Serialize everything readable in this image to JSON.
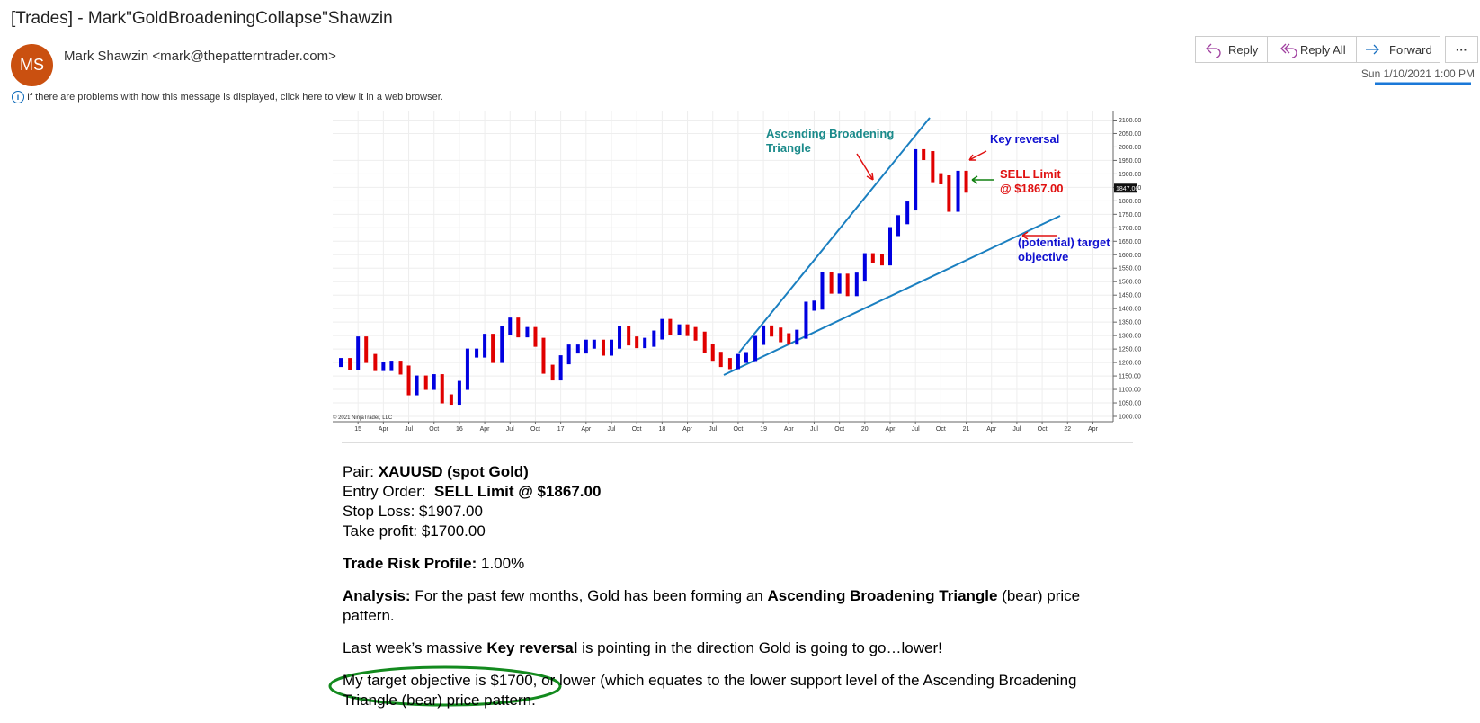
{
  "email": {
    "subject": "[Trades] - Mark\"GoldBroadeningCollapse\"Shawzin",
    "initials": "MS",
    "sender": "Mark Shawzin <mark@thepatterntrader.com>",
    "info": "If there are problems with how this message is displayed, click here to view it in a web browser.",
    "buttons": [
      "Reply",
      "Reply All",
      "Forward"
    ],
    "date": "Sun 1/10/2021 1:00 PM",
    "body": [
      [
        [
          {
            "text": "Pair: "
          },
          {
            "text": "XAUUSD (spot Gold)",
            "bold": true
          }
        ],
        [
          {
            "text": "Entry Order:  "
          },
          {
            "text": "SELL Limit @ $1867.00",
            "bold": true
          }
        ],
        [
          {
            "text": "Stop Loss: $1907.00"
          }
        ],
        [
          {
            "text": "Take profit: $1700.00"
          }
        ]
      ],
      [
        [
          {
            "text": "Trade Risk Profile:",
            "bold": true
          },
          {
            "text": " 1.00%"
          }
        ]
      ],
      [
        [
          {
            "text": "Analysis:",
            "bold": true
          },
          {
            "text": " For the past few months, Gold has been forming an "
          },
          {
            "text": "Ascending Broadening Triangle",
            "bold": true
          },
          {
            "text": " (bear) price pattern."
          }
        ]
      ],
      [
        [
          {
            "text": "Last week’s massive "
          },
          {
            "text": "Key reversal",
            "bold": true
          },
          {
            "text": " is pointing in the direction Gold is going to go…lower!"
          }
        ]
      ],
      [
        [
          {
            "text": "My target objective is $1700, or lower (which equates to the lower support level of the Ascending Broadening Triangle (bear) price pattern."
          }
        ]
      ]
    ]
  },
  "chart_data": {
    "type": "ohlc",
    "up_color": "#0000e0",
    "down_color": "#e00000",
    "annotations": [
      {
        "lines": [
          "Ascending Broadening",
          "Triangle"
        ],
        "color": "#1a8a8a"
      },
      {
        "lines": [
          "Key reversal"
        ],
        "color": "#1010d0"
      },
      {
        "lines": [
          "SELL Limit",
          "@ $1867.00"
        ],
        "color": "#e01010"
      },
      {
        "lines": [
          "(potential) target",
          "objective"
        ],
        "color": "#1010d0"
      }
    ],
    "copyright": "© 2021 NinjaTrader, LLC",
    "last_price": 1847.06,
    "x": [
      2014.83,
      2014.92,
      2015.0,
      2015.08,
      2015.17,
      2015.25,
      2015.33,
      2015.42,
      2015.5,
      2015.58,
      2015.67,
      2015.75,
      2015.83,
      2015.92,
      2016.0,
      2016.08,
      2016.17,
      2016.25,
      2016.33,
      2016.42,
      2016.5,
      2016.58,
      2016.67,
      2016.75,
      2016.83,
      2016.92,
      2017.0,
      2017.08,
      2017.17,
      2017.25,
      2017.33,
      2017.42,
      2017.5,
      2017.58,
      2017.67,
      2017.75,
      2017.83,
      2017.92,
      2018.0,
      2018.08,
      2018.17,
      2018.25,
      2018.33,
      2018.42,
      2018.5,
      2018.58,
      2018.67,
      2018.75,
      2018.83,
      2018.92,
      2019.0,
      2019.08,
      2019.17,
      2019.25,
      2019.33,
      2019.42,
      2019.5,
      2019.58,
      2019.67,
      2019.75,
      2019.83,
      2019.92,
      2020.0,
      2020.08,
      2020.17,
      2020.25,
      2020.33,
      2020.42,
      2020.5,
      2020.58,
      2020.67,
      2020.75,
      2020.83,
      2020.92,
      2021.0
    ],
    "values": [
      1200,
      1190,
      1280,
      1215,
      1185,
      1185,
      1190,
      1172,
      1095,
      1135,
      1115,
      1140,
      1065,
      1060,
      1115,
      1235,
      1235,
      1290,
      1215,
      1320,
      1350,
      1310,
      1315,
      1275,
      1175,
      1150,
      1210,
      1250,
      1250,
      1268,
      1268,
      1242,
      1268,
      1320,
      1280,
      1270,
      1275,
      1302,
      1345,
      1318,
      1325,
      1315,
      1298,
      1252,
      1223,
      1200,
      1192,
      1215,
      1222,
      1282,
      1321,
      1313,
      1292,
      1283,
      1305,
      1409,
      1413,
      1520,
      1472,
      1513,
      1463,
      1517,
      1589,
      1585,
      1577,
      1686,
      1730,
      1781,
      1975,
      1968,
      1886,
      1878,
      1776,
      1895,
      1847
    ],
    "xlim": [
      2014.75,
      2022.45
    ],
    "ylim": [
      980,
      2135
    ],
    "grid": true,
    "xticks": [
      {
        "value": 2015,
        "label": "15"
      },
      {
        "value": 2015.25,
        "label": "Apr"
      },
      {
        "value": 2015.5,
        "label": "Jul"
      },
      {
        "value": 2015.75,
        "label": "Oct"
      },
      {
        "value": 2016,
        "label": "16"
      },
      {
        "value": 2016.25,
        "label": "Apr"
      },
      {
        "value": 2016.5,
        "label": "Jul"
      },
      {
        "value": 2016.75,
        "label": "Oct"
      },
      {
        "value": 2017,
        "label": "17"
      },
      {
        "value": 2017.25,
        "label": "Apr"
      },
      {
        "value": 2017.5,
        "label": "Jul"
      },
      {
        "value": 2017.75,
        "label": "Oct"
      },
      {
        "value": 2018,
        "label": "18"
      },
      {
        "value": 2018.25,
        "label": "Apr"
      },
      {
        "value": 2018.5,
        "label": "Jul"
      },
      {
        "value": 2018.75,
        "label": "Oct"
      },
      {
        "value": 2019,
        "label": "19"
      },
      {
        "value": 2019.25,
        "label": "Apr"
      },
      {
        "value": 2019.5,
        "label": "Jul"
      },
      {
        "value": 2019.75,
        "label": "Oct"
      },
      {
        "value": 2020,
        "label": "20"
      },
      {
        "value": 2020.25,
        "label": "Apr"
      },
      {
        "value": 2020.5,
        "label": "Jul"
      },
      {
        "value": 2020.75,
        "label": "Oct"
      },
      {
        "value": 2021,
        "label": "21"
      },
      {
        "value": 2021.25,
        "label": "Apr"
      },
      {
        "value": 2021.5,
        "label": "Jul"
      },
      {
        "value": 2021.75,
        "label": "Oct"
      },
      {
        "value": 2022,
        "label": "22"
      },
      {
        "value": 2022.25,
        "label": "Apr"
      }
    ],
    "yticks": [
      {
        "value": 1000,
        "label": "1000.00"
      },
      {
        "value": 1050,
        "label": "1050.00"
      },
      {
        "value": 1100,
        "label": "1100.00"
      },
      {
        "value": 1150,
        "label": "1150.00"
      },
      {
        "value": 1200,
        "label": "1200.00"
      },
      {
        "value": 1250,
        "label": "1250.00"
      },
      {
        "value": 1300,
        "label": "1300.00"
      },
      {
        "value": 1350,
        "label": "1350.00"
      },
      {
        "value": 1400,
        "label": "1400.00"
      },
      {
        "value": 1450,
        "label": "1450.00"
      },
      {
        "value": 1500,
        "label": "1500.00"
      },
      {
        "value": 1550,
        "label": "1550.00"
      },
      {
        "value": 1600,
        "label": "1600.00"
      },
      {
        "value": 1650,
        "label": "1650.00"
      },
      {
        "value": 1700,
        "label": "1700.00"
      },
      {
        "value": 1750,
        "label": "1750.00"
      },
      {
        "value": 1800,
        "label": "1800.00"
      },
      {
        "value": 1850,
        "label": "1850.00"
      },
      {
        "value": 1900,
        "label": "1900.00"
      },
      {
        "value": 1950,
        "label": "1950.00"
      },
      {
        "value": 2000,
        "label": "2000.00"
      },
      {
        "value": 2050,
        "label": "2050.00"
      },
      {
        "value": 2100,
        "label": "2100.00"
      }
    ]
  }
}
